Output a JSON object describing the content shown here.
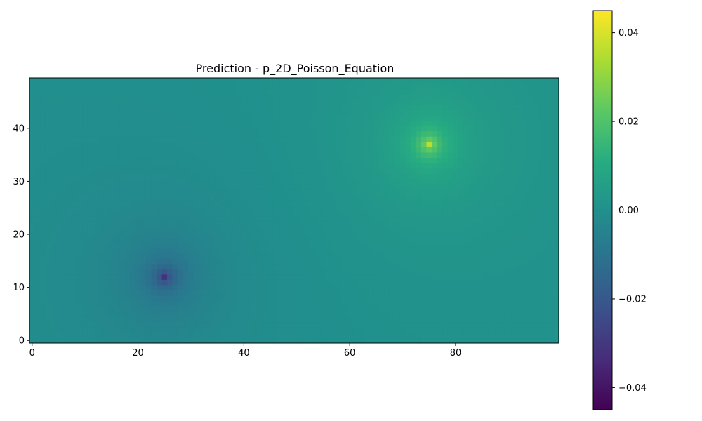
{
  "chart_data": {
    "type": "heatmap",
    "title": "Prediction - p_2D_Poisson_Equation",
    "xlabel": "",
    "ylabel": "",
    "grid_cols": 100,
    "grid_rows": 50,
    "xlim": [
      -0.5,
      99.5
    ],
    "ylim": [
      -0.5,
      49.5
    ],
    "y_origin": "lower",
    "colormap": "viridis",
    "x_ticks": [
      0,
      20,
      40,
      60,
      80
    ],
    "x_tick_labels": [
      "0",
      "20",
      "40",
      "60",
      "80"
    ],
    "y_ticks": [
      0,
      10,
      20,
      30,
      40
    ],
    "y_tick_labels": [
      "0",
      "10",
      "20",
      "30",
      "40"
    ],
    "color_range": [
      -0.045,
      0.045
    ],
    "colorbar_ticks": [
      0.04,
      0.02,
      0.0,
      -0.02,
      -0.04
    ],
    "colorbar_tick_labels": [
      "0.04",
      "0.02",
      "0.00",
      "−0.02",
      "−0.04"
    ],
    "sources": [
      {
        "name": "positive peak",
        "x": 75,
        "y": 37,
        "value": 0.037
      },
      {
        "name": "negative peak",
        "x": 25,
        "y": 12,
        "value": -0.033
      }
    ],
    "background_value": 0.0
  },
  "colors": {
    "axis": "#000000",
    "background": "#ffffff"
  }
}
